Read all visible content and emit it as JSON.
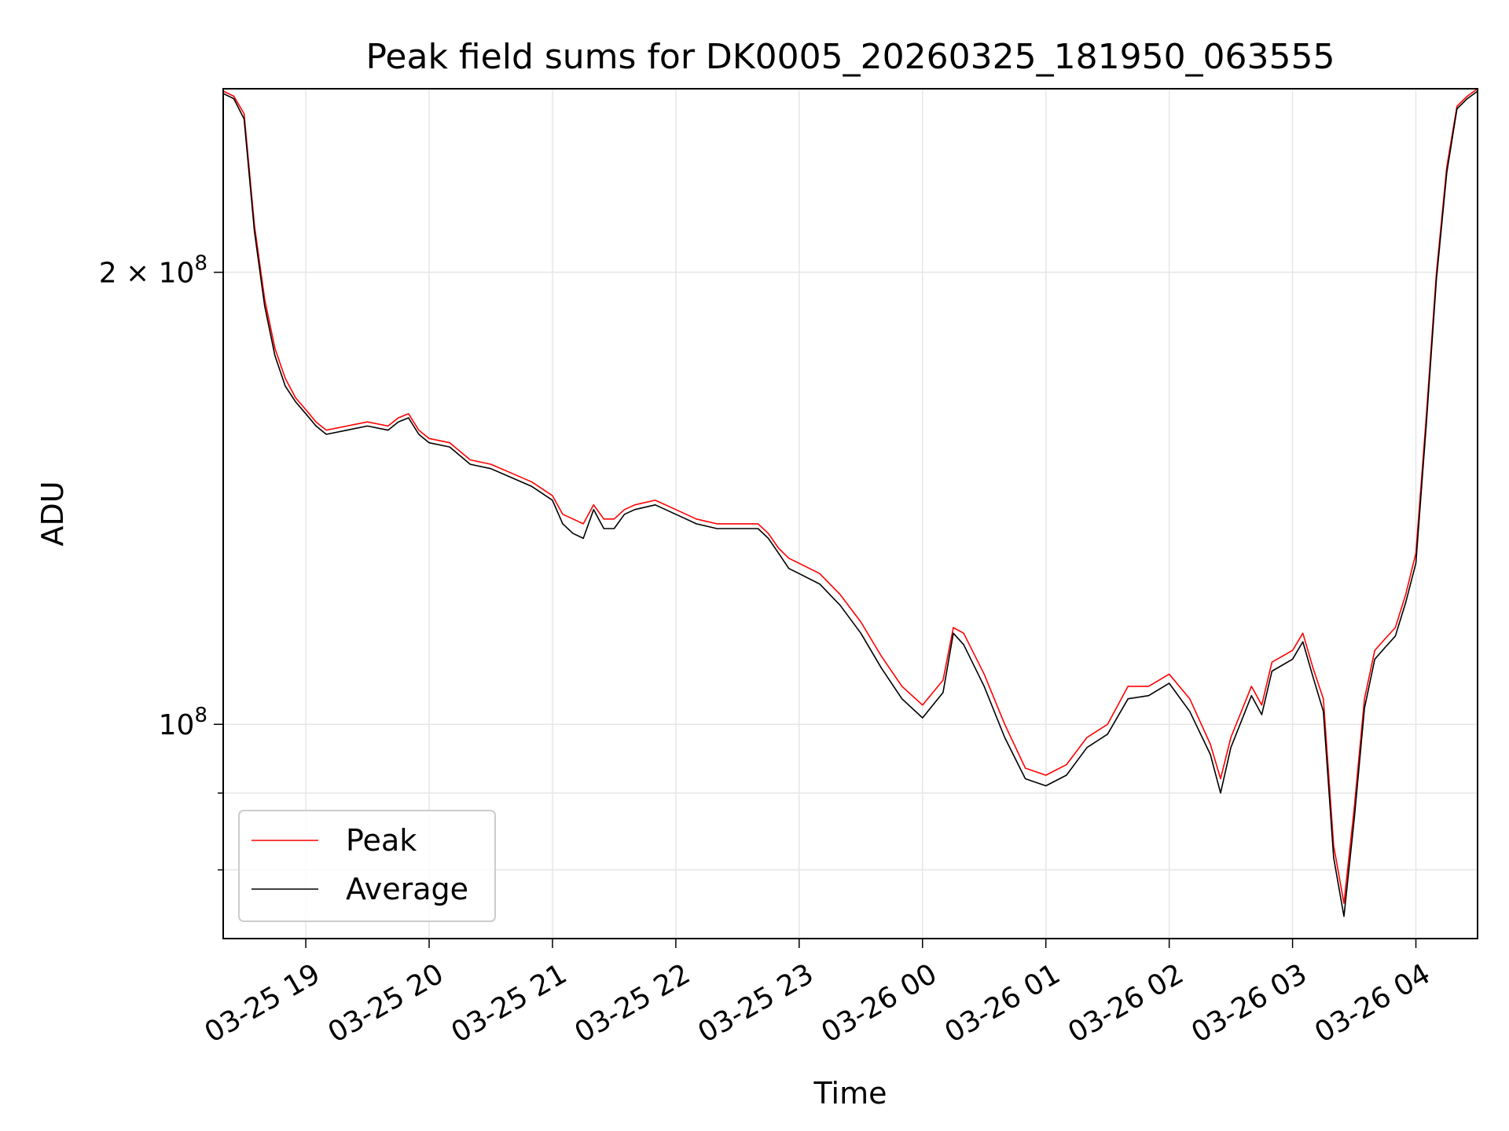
{
  "chart_data": {
    "type": "line",
    "title": "Peak field sums for DK0005_20260325_181950_063555",
    "xlabel": "Time",
    "ylabel": "ADU",
    "yscale": "log",
    "grid": true,
    "legend_position": "lower-left",
    "xlim": [
      "2026-03-25 18:19:50",
      "2026-03-26 04:30:00"
    ],
    "ylim": [
      72000000,
      265000000
    ],
    "x_ticks": [
      "03-25 19",
      "03-25 20",
      "03-25 21",
      "03-25 22",
      "03-25 23",
      "03-26 00",
      "03-26 01",
      "03-26 02",
      "03-26 03",
      "03-26 04"
    ],
    "x_tick_times": [
      "2026-03-25 19:00",
      "2026-03-25 20:00",
      "2026-03-25 21:00",
      "2026-03-25 22:00",
      "2026-03-25 23:00",
      "2026-03-26 00:00",
      "2026-03-26 01:00",
      "2026-03-26 02:00",
      "2026-03-26 03:00",
      "2026-03-26 04:00"
    ],
    "y_ticks": [
      {
        "value": 200000000,
        "label": "2 × 10",
        "exp": "8",
        "labeled": true
      },
      {
        "value": 100000000,
        "label": "10",
        "exp": "8",
        "labeled": true
      },
      {
        "value": 90000000,
        "labeled": false
      },
      {
        "value": 80000000,
        "labeled": false
      }
    ],
    "series": [
      {
        "name": "Peak",
        "color": "#ff0000",
        "x": [
          "2026-03-25 18:20",
          "2026-03-25 18:25",
          "2026-03-25 18:30",
          "2026-03-25 18:35",
          "2026-03-25 18:40",
          "2026-03-25 18:45",
          "2026-03-25 18:50",
          "2026-03-25 18:55",
          "2026-03-25 19:00",
          "2026-03-25 19:05",
          "2026-03-25 19:10",
          "2026-03-25 19:20",
          "2026-03-25 19:30",
          "2026-03-25 19:40",
          "2026-03-25 19:45",
          "2026-03-25 19:50",
          "2026-03-25 19:55",
          "2026-03-25 20:00",
          "2026-03-25 20:10",
          "2026-03-25 20:20",
          "2026-03-25 20:30",
          "2026-03-25 20:40",
          "2026-03-25 20:50",
          "2026-03-25 21:00",
          "2026-03-25 21:05",
          "2026-03-25 21:10",
          "2026-03-25 21:15",
          "2026-03-25 21:20",
          "2026-03-25 21:25",
          "2026-03-25 21:30",
          "2026-03-25 21:35",
          "2026-03-25 21:40",
          "2026-03-25 21:50",
          "2026-03-25 22:00",
          "2026-03-25 22:10",
          "2026-03-25 22:20",
          "2026-03-25 22:30",
          "2026-03-25 22:40",
          "2026-03-25 22:45",
          "2026-03-25 22:50",
          "2026-03-25 22:55",
          "2026-03-25 23:00",
          "2026-03-25 23:10",
          "2026-03-25 23:20",
          "2026-03-25 23:30",
          "2026-03-25 23:40",
          "2026-03-25 23:50",
          "2026-03-26 00:00",
          "2026-03-26 00:10",
          "2026-03-26 00:15",
          "2026-03-26 00:20",
          "2026-03-26 00:30",
          "2026-03-26 00:40",
          "2026-03-26 00:50",
          "2026-03-26 01:00",
          "2026-03-26 01:10",
          "2026-03-26 01:20",
          "2026-03-26 01:30",
          "2026-03-26 01:40",
          "2026-03-26 01:50",
          "2026-03-26 02:00",
          "2026-03-26 02:10",
          "2026-03-26 02:20",
          "2026-03-26 02:25",
          "2026-03-26 02:30",
          "2026-03-26 02:40",
          "2026-03-26 02:45",
          "2026-03-26 02:50",
          "2026-03-26 03:00",
          "2026-03-26 03:05",
          "2026-03-26 03:10",
          "2026-03-26 03:15",
          "2026-03-26 03:20",
          "2026-03-26 03:25",
          "2026-03-26 03:30",
          "2026-03-26 03:35",
          "2026-03-26 03:40",
          "2026-03-26 03:45",
          "2026-03-26 03:50",
          "2026-03-26 03:55",
          "2026-03-26 04:00",
          "2026-03-26 04:05",
          "2026-03-26 04:10",
          "2026-03-26 04:15",
          "2026-03-26 04:20",
          "2026-03-26 04:25",
          "2026-03-26 04:30"
        ],
        "y": [
          264000000,
          262000000,
          255000000,
          215000000,
          192000000,
          178000000,
          170000000,
          165000000,
          162000000,
          159000000,
          157000000,
          158000000,
          159000000,
          158000000,
          160000000,
          161000000,
          157000000,
          155000000,
          154000000,
          150000000,
          149000000,
          147000000,
          145000000,
          142000000,
          138000000,
          137000000,
          136000000,
          140000000,
          137000000,
          137000000,
          139000000,
          140000000,
          141000000,
          139000000,
          137000000,
          136000000,
          136000000,
          136000000,
          134000000,
          131000000,
          129000000,
          128000000,
          126000000,
          122000000,
          117000000,
          111000000,
          106000000,
          103000000,
          107000000,
          116000000,
          115000000,
          108000000,
          100000000,
          93500000,
          92500000,
          94000000,
          98000000,
          100000000,
          106000000,
          106000000,
          108000000,
          104000000,
          97000000,
          92000000,
          98000000,
          106000000,
          103000000,
          110000000,
          112000000,
          115000000,
          109000000,
          104000000,
          83000000,
          76000000,
          88000000,
          104000000,
          112000000,
          114000000,
          116000000,
          122000000,
          130000000,
          160000000,
          200000000,
          235000000,
          258000000,
          262000000,
          265000000
        ]
      },
      {
        "name": "Average",
        "color": "#000000",
        "x": [
          "2026-03-25 18:20",
          "2026-03-25 18:25",
          "2026-03-25 18:30",
          "2026-03-25 18:35",
          "2026-03-25 18:40",
          "2026-03-25 18:45",
          "2026-03-25 18:50",
          "2026-03-25 18:55",
          "2026-03-25 19:00",
          "2026-03-25 19:05",
          "2026-03-25 19:10",
          "2026-03-25 19:20",
          "2026-03-25 19:30",
          "2026-03-25 19:40",
          "2026-03-25 19:45",
          "2026-03-25 19:50",
          "2026-03-25 19:55",
          "2026-03-25 20:00",
          "2026-03-25 20:10",
          "2026-03-25 20:20",
          "2026-03-25 20:30",
          "2026-03-25 20:40",
          "2026-03-25 20:50",
          "2026-03-25 21:00",
          "2026-03-25 21:05",
          "2026-03-25 21:10",
          "2026-03-25 21:15",
          "2026-03-25 21:20",
          "2026-03-25 21:25",
          "2026-03-25 21:30",
          "2026-03-25 21:35",
          "2026-03-25 21:40",
          "2026-03-25 21:50",
          "2026-03-25 22:00",
          "2026-03-25 22:10",
          "2026-03-25 22:20",
          "2026-03-25 22:30",
          "2026-03-25 22:40",
          "2026-03-25 22:45",
          "2026-03-25 22:50",
          "2026-03-25 22:55",
          "2026-03-25 23:00",
          "2026-03-25 23:10",
          "2026-03-25 23:20",
          "2026-03-25 23:30",
          "2026-03-25 23:40",
          "2026-03-25 23:50",
          "2026-03-26 00:00",
          "2026-03-26 00:10",
          "2026-03-26 00:15",
          "2026-03-26 00:20",
          "2026-03-26 00:30",
          "2026-03-26 00:40",
          "2026-03-26 00:50",
          "2026-03-26 01:00",
          "2026-03-26 01:10",
          "2026-03-26 01:20",
          "2026-03-26 01:30",
          "2026-03-26 01:40",
          "2026-03-26 01:50",
          "2026-03-26 02:00",
          "2026-03-26 02:10",
          "2026-03-26 02:20",
          "2026-03-26 02:25",
          "2026-03-26 02:30",
          "2026-03-26 02:40",
          "2026-03-26 02:45",
          "2026-03-26 02:50",
          "2026-03-26 03:00",
          "2026-03-26 03:05",
          "2026-03-26 03:10",
          "2026-03-26 03:15",
          "2026-03-26 03:20",
          "2026-03-26 03:25",
          "2026-03-26 03:30",
          "2026-03-26 03:35",
          "2026-03-26 03:40",
          "2026-03-26 03:45",
          "2026-03-26 03:50",
          "2026-03-26 03:55",
          "2026-03-26 04:00",
          "2026-03-26 04:05",
          "2026-03-26 04:10",
          "2026-03-26 04:15",
          "2026-03-26 04:20",
          "2026-03-26 04:25",
          "2026-03-26 04:30"
        ],
        "y": [
          263000000,
          261000000,
          253000000,
          213000000,
          190000000,
          176000000,
          168000000,
          164000000,
          161000000,
          158000000,
          156000000,
          157000000,
          158000000,
          157000000,
          159000000,
          160000000,
          156000000,
          154000000,
          153000000,
          149000000,
          148000000,
          146000000,
          144000000,
          141000000,
          136000000,
          134000000,
          133000000,
          139000000,
          135000000,
          135000000,
          138000000,
          139000000,
          140000000,
          138000000,
          136000000,
          135000000,
          135000000,
          135000000,
          133000000,
          130000000,
          127000000,
          126000000,
          124000000,
          120000000,
          115000000,
          109000000,
          104000000,
          101000000,
          105000000,
          115000000,
          113000000,
          106000000,
          98000000,
          92000000,
          91000000,
          92500000,
          96500000,
          98500000,
          104000000,
          104500000,
          106500000,
          102000000,
          95500000,
          90000000,
          96500000,
          104500000,
          101500000,
          108500000,
          110500000,
          113500000,
          107500000,
          102000000,
          81500000,
          74500000,
          86500000,
          102500000,
          110500000,
          112500000,
          114500000,
          120500000,
          128000000,
          158000000,
          198000000,
          233000000,
          257000000,
          261000000,
          264000000
        ]
      }
    ]
  }
}
